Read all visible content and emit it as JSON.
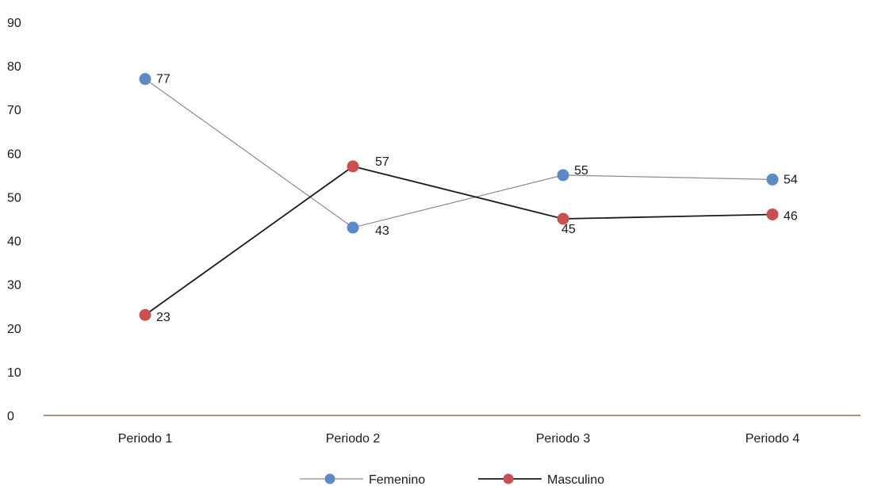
{
  "chart_data": {
    "type": "line",
    "title": "",
    "xlabel": "",
    "ylabel": "",
    "categories": [
      "Periodo 1",
      "Periodo 2",
      "Periodo 3",
      "Periodo 4"
    ],
    "ylim": [
      0,
      90
    ],
    "yticks": [
      "0",
      "10",
      "20",
      "30",
      "40",
      "50",
      "60",
      "70",
      "80",
      "90"
    ],
    "grid": false,
    "legend_position": "bottom",
    "series": [
      {
        "name": "Femenino",
        "values": [
          77,
          43,
          55,
          54
        ],
        "labels": [
          "77",
          "43",
          "55",
          "54"
        ],
        "line_color": "#8c8c8c",
        "marker_color": "#5b8ac6"
      },
      {
        "name": "Masculino",
        "values": [
          23,
          57,
          45,
          46
        ],
        "labels": [
          "23",
          "57",
          "45",
          "46"
        ],
        "line_color": "#1a1a1a",
        "marker_color": "#c9504f"
      }
    ],
    "axis_color": "#7a4a2a"
  }
}
